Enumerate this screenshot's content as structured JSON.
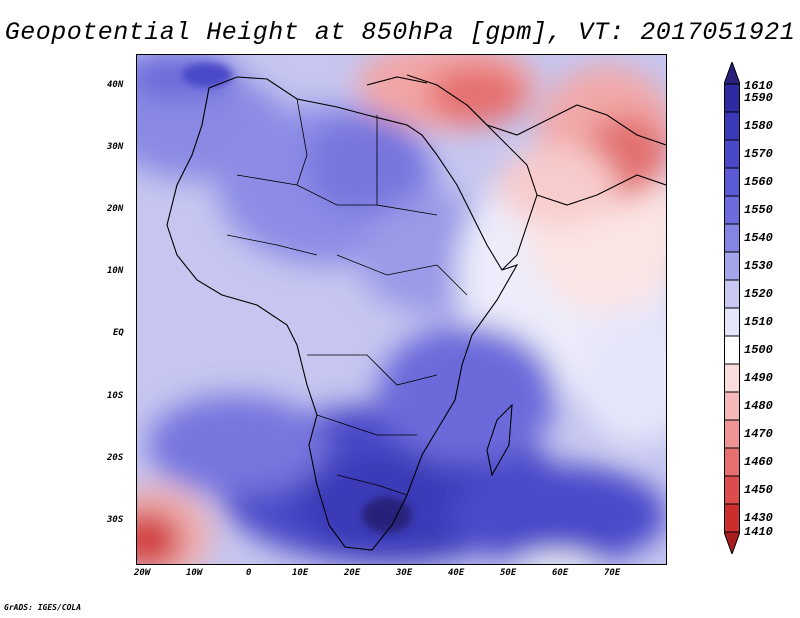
{
  "title": "Geopotential Height at 850hPa [gpm], VT: 2017051921",
  "credit": "GrADS: IGES/COLA",
  "lat_ticks": [
    "40N",
    "30N",
    "20N",
    "10N",
    "EQ",
    "10S",
    "20S",
    "30S"
  ],
  "lon_ticks": [
    "20W",
    "10W",
    "0",
    "10E",
    "20E",
    "30E",
    "40E",
    "50E",
    "60E",
    "70E"
  ],
  "colorbar": {
    "levels": [
      "1610",
      "1590",
      "1580",
      "1570",
      "1560",
      "1550",
      "1540",
      "1530",
      "1520",
      "1510",
      "1500",
      "1490",
      "1480",
      "1470",
      "1460",
      "1450",
      "1430",
      "1410"
    ],
    "colors": [
      "#28207a",
      "#2e2aa0",
      "#3a3ab8",
      "#4848c8",
      "#5a5ad4",
      "#6c6cdc",
      "#8484e2",
      "#a4a4ea",
      "#c8c8f2",
      "#e6e6fa",
      "#ffffff",
      "#fbdcdc",
      "#f5b8b8",
      "#ee9494",
      "#e67070",
      "#dc4c4c",
      "#cc2e2e",
      "#a81e1e"
    ]
  },
  "map": {
    "name": "Africa and Middle East 850 hPa geopotential height field",
    "colors": {
      "ocean_base": "#c4c4ef",
      "low_red": "#e07a7a",
      "deep_blue": "#3434b0"
    }
  }
}
